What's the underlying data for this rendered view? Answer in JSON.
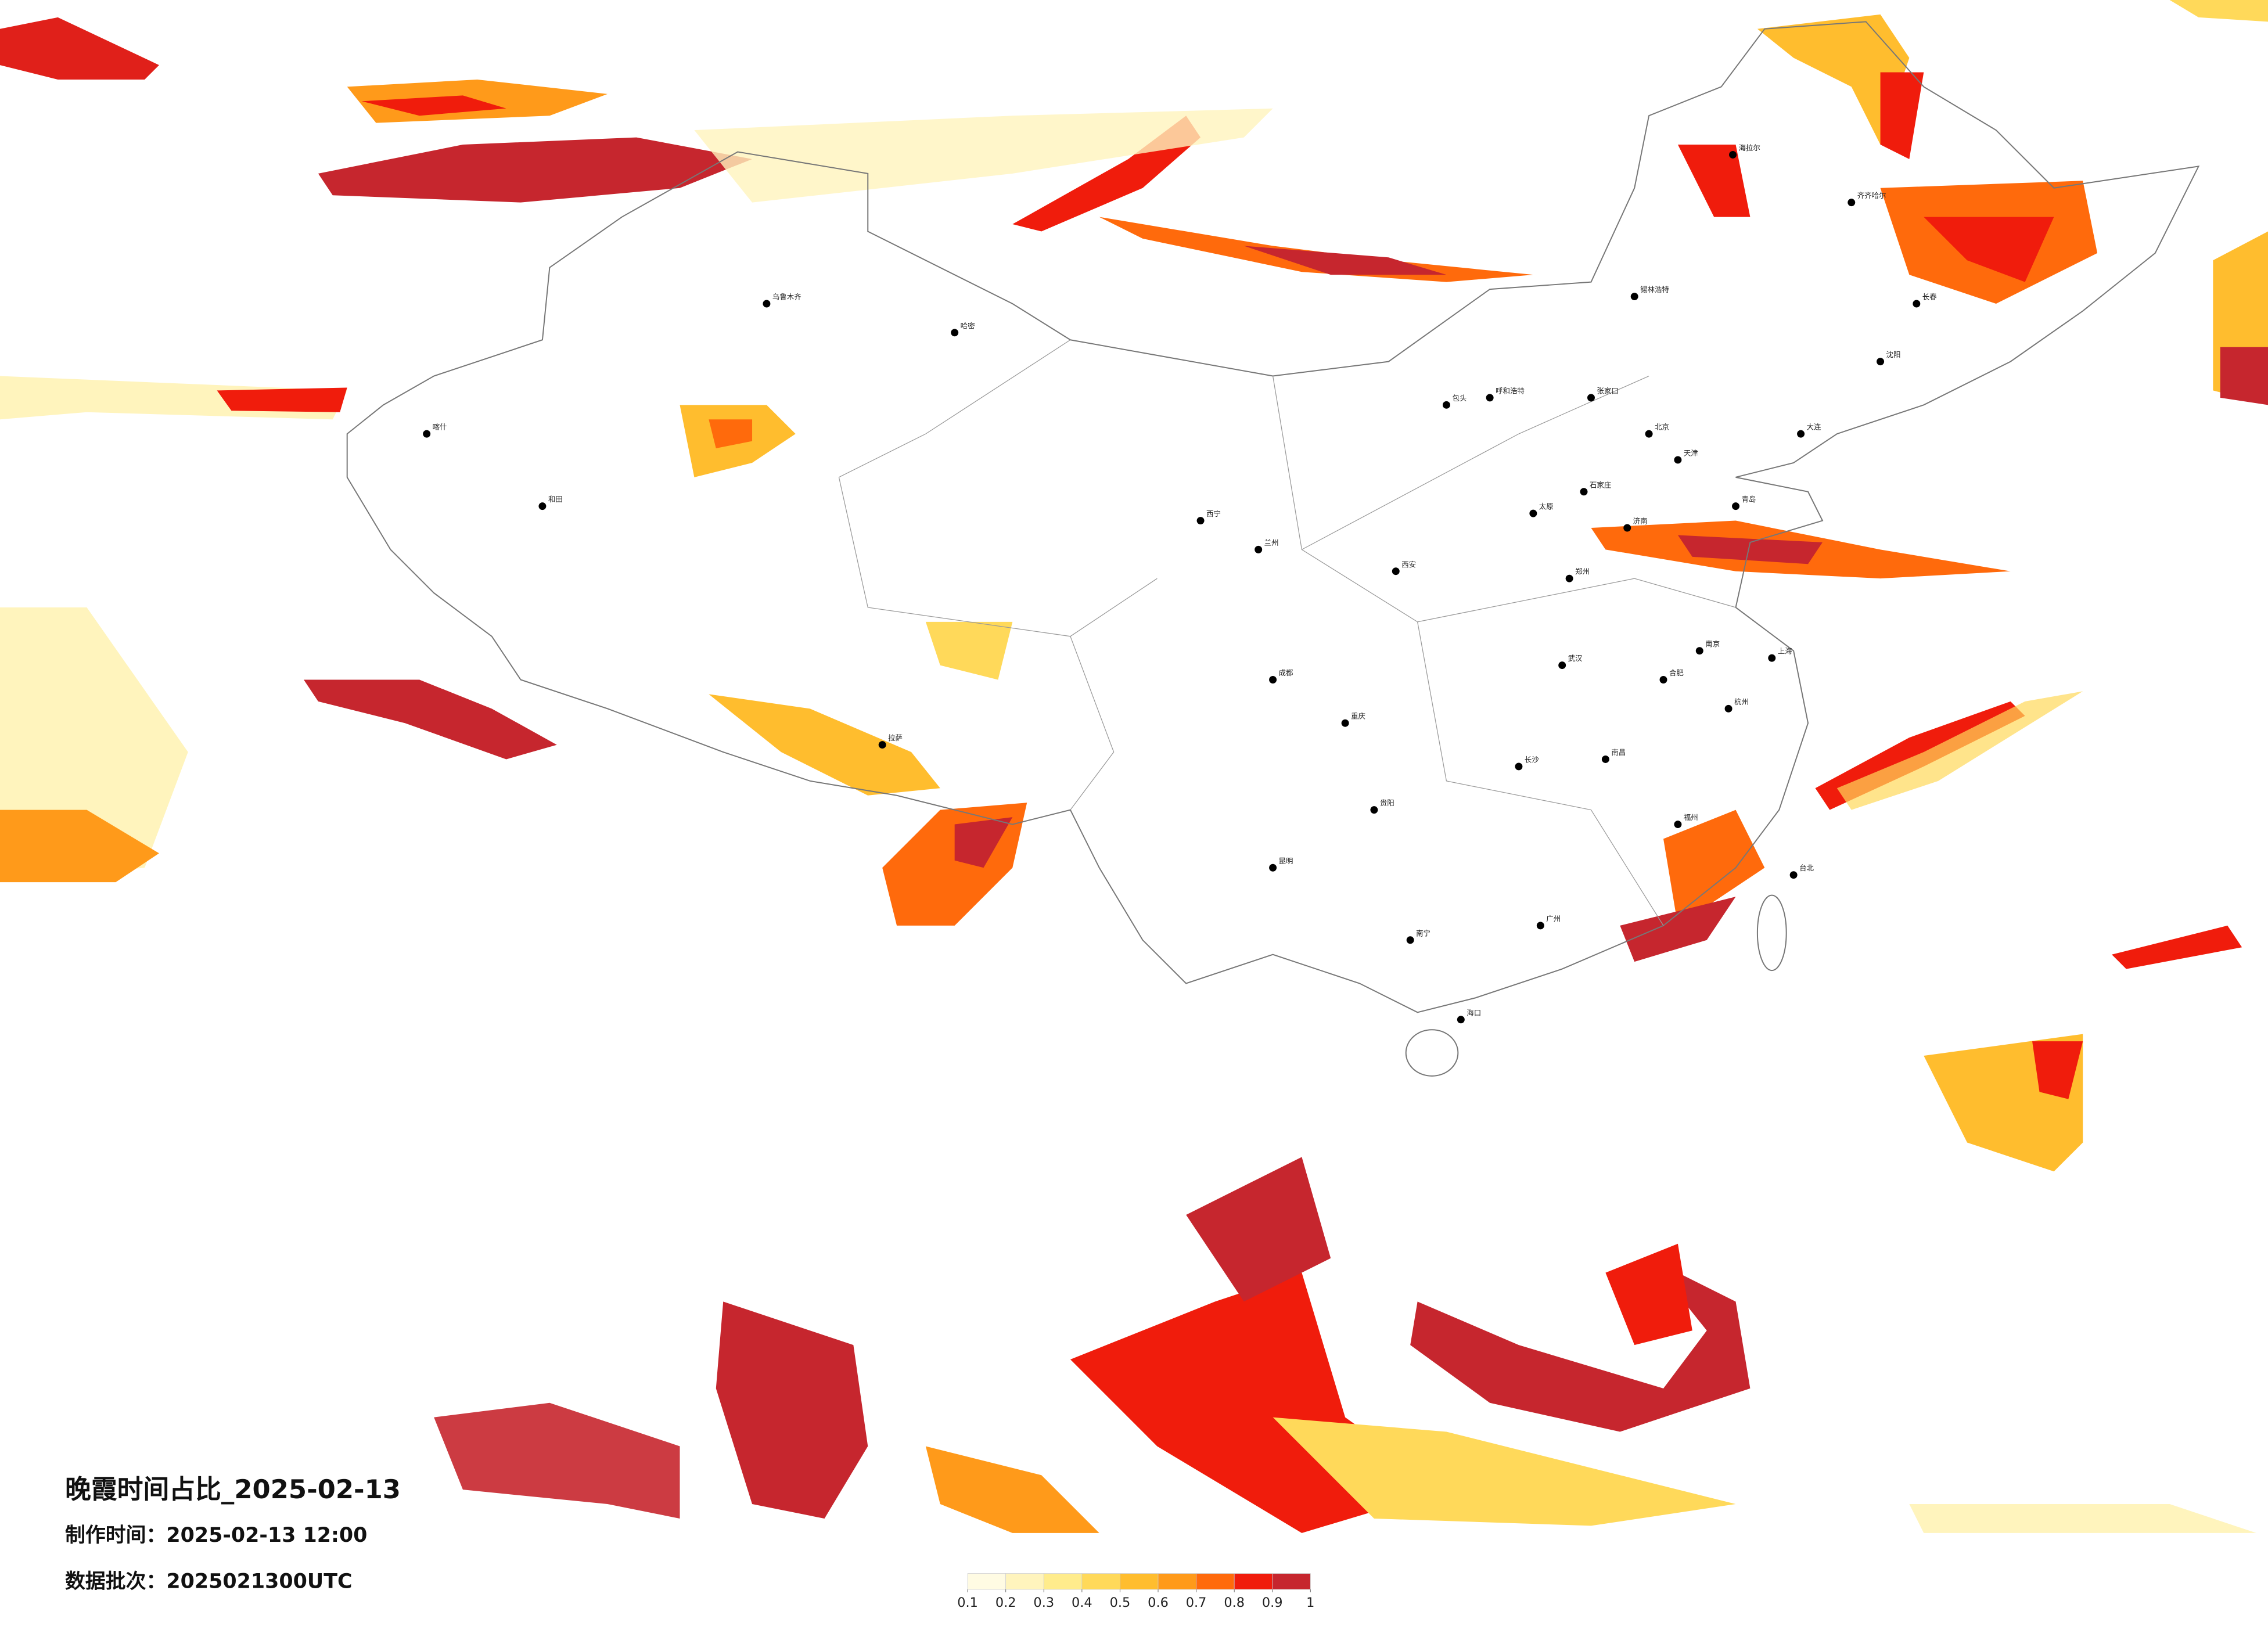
{
  "title": "晚霞时间占比_2025-02-13",
  "made_time": "制作时间：2025-02-13 12:00",
  "batch": "数据批次：2025021300UTC",
  "colorbar": {
    "ticks": [
      0.1,
      0.2,
      0.3,
      0.4,
      0.5,
      0.6,
      0.7,
      0.8,
      0.9,
      1
    ],
    "colors": [
      "#fffbe3",
      "#fff4bd",
      "#ffec8c",
      "#ffd95a",
      "#ffbd2e",
      "#ff9a1a",
      "#ff6a0c",
      "#f01c0c",
      "#c6262e"
    ]
  },
  "cities": [
    "海拉尔",
    "齐齐哈尔",
    "锡林浩特",
    "呼和浩特",
    "包头",
    "张家口",
    "北京",
    "天津",
    "石家庄",
    "太原",
    "济南",
    "郑州",
    "西安",
    "兰州",
    "西宁",
    "成都",
    "重庆",
    "贵阳",
    "昆明",
    "南宁",
    "广州",
    "福州",
    "杭州",
    "上海",
    "南京",
    "武汉",
    "长沙",
    "南昌",
    "合肥",
    "海口",
    "拉萨",
    "乌鲁木齐",
    "喀什",
    "和田",
    "哈密",
    "长春",
    "沈阳",
    "大连",
    "青岛",
    "台北"
  ]
}
